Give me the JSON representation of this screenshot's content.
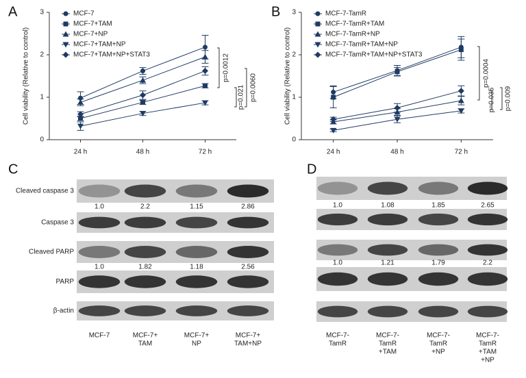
{
  "chart_data": [
    {
      "type": "line",
      "panel_label": "A",
      "y_label": "Cell viability (Relative to control)",
      "categories": [
        "24 h",
        "48 h",
        "72 h"
      ],
      "ylim": [
        0,
        3
      ],
      "yticks": [
        0,
        1,
        2,
        3
      ],
      "series": [
        {
          "name": "MCF-7",
          "marker": "circle",
          "color": "#1f3b63",
          "values": [
            0.98,
            1.62,
            2.18
          ],
          "errors": [
            0.15,
            0.08,
            0.28
          ]
        },
        {
          "name": "MCF-7+TAM",
          "marker": "square",
          "color": "#1f3b63",
          "values": [
            0.5,
            0.88,
            1.27
          ],
          "errors": [
            0.05,
            0.05,
            0.05
          ]
        },
        {
          "name": "MCF-7+NP",
          "marker": "triangle",
          "color": "#1f3b63",
          "values": [
            0.88,
            1.4,
            1.95
          ],
          "errors": [
            0.08,
            0.08,
            0.15
          ]
        },
        {
          "name": "MCF-7+TAM+NP",
          "marker": "triangle-down",
          "color": "#1f3b63",
          "values": [
            0.32,
            0.62,
            0.87
          ],
          "errors": [
            0.1,
            0.05,
            0.05
          ]
        },
        {
          "name": "MCF-7+TAM+NP+STAT3",
          "marker": "diamond",
          "color": "#1f3b63",
          "values": [
            0.6,
            1.05,
            1.62
          ],
          "errors": [
            0.06,
            0.1,
            0.1
          ]
        }
      ],
      "annotations": [
        "p=0.0012",
        "p=0.021",
        "p=0.0060"
      ]
    },
    {
      "type": "line",
      "panel_label": "B",
      "y_label": "Cell viability (Relative to control)",
      "categories": [
        "24 h",
        "48 h",
        "72 h"
      ],
      "ylim": [
        0,
        3
      ],
      "yticks": [
        0,
        1,
        2,
        3
      ],
      "series": [
        {
          "name": "MCF-7-TamR",
          "marker": "circle",
          "color": "#1f3b63",
          "values": [
            1.12,
            1.63,
            2.18
          ],
          "errors": [
            0.15,
            0.12,
            0.25
          ]
        },
        {
          "name": "MCF-7-TamR+TAM",
          "marker": "square",
          "color": "#1f3b63",
          "values": [
            1.0,
            1.6,
            2.12
          ],
          "errors": [
            0.25,
            0.1,
            0.25
          ]
        },
        {
          "name": "MCF-7-TamR+NP",
          "marker": "triangle",
          "color": "#1f3b63",
          "values": [
            0.42,
            0.65,
            0.92
          ],
          "errors": [
            0.05,
            0.08,
            0.1
          ]
        },
        {
          "name": "MCF-7-TamR+TAM+NP",
          "marker": "triangle-down",
          "color": "#1f3b63",
          "values": [
            0.22,
            0.48,
            0.68
          ],
          "errors": [
            0.03,
            0.08,
            0.05
          ]
        },
        {
          "name": "MCF-7-TamR+TAM+NP+STAT3",
          "marker": "diamond",
          "color": "#1f3b63",
          "values": [
            0.48,
            0.75,
            1.15
          ],
          "errors": [
            0.05,
            0.1,
            0.12
          ]
        }
      ],
      "annotations": [
        "p=0.0004",
        "p=0.035",
        "p=0.009"
      ]
    }
  ],
  "blots": [
    {
      "panel_label": "C",
      "row_labels": [
        "Cleaved caspase 3",
        "Caspase 3",
        "Cleaved PARP",
        "PARP",
        "β-actin"
      ],
      "ratios": [
        [
          "1.0",
          "2.2",
          "1.15",
          "2.86"
        ],
        [
          "1.0",
          "1.82",
          "1.18",
          "2.56"
        ]
      ],
      "lanes": [
        [
          "MCF-7"
        ],
        [
          "MCF-7+",
          "TAM"
        ],
        [
          "MCF-7+",
          "NP"
        ],
        [
          "MCF-7+",
          "TAM+NP"
        ]
      ]
    },
    {
      "panel_label": "D",
      "ratios": [
        [
          "1.0",
          "1.08",
          "1.85",
          "2.65"
        ],
        [
          "1.0",
          "1.21",
          "1.79",
          "2.2"
        ]
      ],
      "lanes": [
        [
          "MCF-7-",
          "TamR"
        ],
        [
          "MCF-7-",
          "TamR",
          "+TAM"
        ],
        [
          "MCF-7-",
          "TamR",
          "+NP"
        ],
        [
          "MCF-7-",
          "TamR",
          "+TAM",
          "+NP"
        ]
      ]
    }
  ]
}
